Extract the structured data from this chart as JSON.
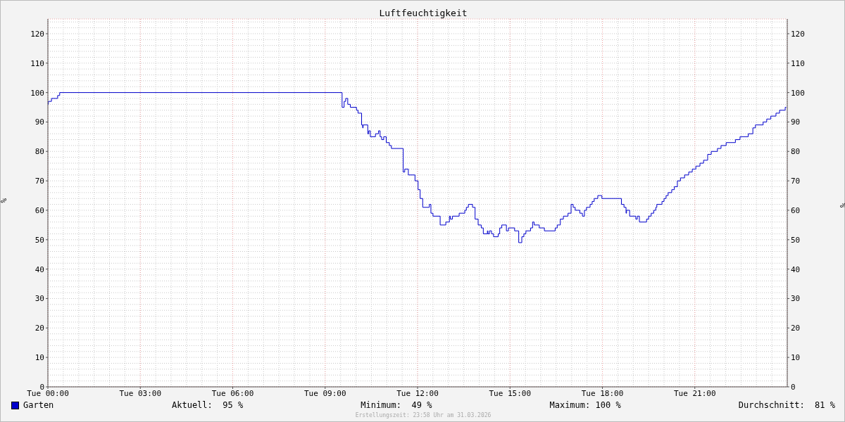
{
  "chart_data": {
    "type": "step",
    "title": "Luftfeuchtigkeit",
    "ylabel": "%",
    "y2label": "%",
    "x": [
      "2026-03-31T00:00",
      "2026-03-31T00:01",
      "2026-03-31T00:07",
      "2026-03-31T00:19",
      "2026-03-31T00:23",
      "2026-03-31T09:32",
      "2026-03-31T09:33",
      "2026-03-31T09:37",
      "2026-03-31T09:40",
      "2026-03-31T09:44",
      "2026-03-31T09:49",
      "2026-03-31T10:01",
      "2026-03-31T10:04",
      "2026-03-31T10:11",
      "2026-03-31T10:13",
      "2026-03-31T10:14",
      "2026-03-31T10:23",
      "2026-03-31T10:25",
      "2026-03-31T10:28",
      "2026-03-31T10:38",
      "2026-03-31T10:44",
      "2026-03-31T10:47",
      "2026-03-31T10:50",
      "2026-03-31T10:54",
      "2026-03-31T10:59",
      "2026-03-31T11:05",
      "2026-03-31T11:09",
      "2026-03-31T11:31",
      "2026-03-31T11:32",
      "2026-03-31T11:35",
      "2026-03-31T11:42",
      "2026-03-31T11:55",
      "2026-03-31T12:01",
      "2026-03-31T12:05",
      "2026-03-31T12:10",
      "2026-03-31T12:23",
      "2026-03-31T12:26",
      "2026-03-31T12:30",
      "2026-03-31T12:44",
      "2026-03-31T12:55",
      "2026-03-31T13:02",
      "2026-03-31T13:04",
      "2026-03-31T13:08",
      "2026-03-31T13:21",
      "2026-03-31T13:32",
      "2026-03-31T13:35",
      "2026-03-31T13:39",
      "2026-03-31T13:47",
      "2026-03-31T13:52",
      "2026-03-31T13:58",
      "2026-03-31T14:04",
      "2026-03-31T14:08",
      "2026-03-31T14:16",
      "2026-03-31T14:17",
      "2026-03-31T14:20",
      "2026-03-31T14:24",
      "2026-03-31T14:28",
      "2026-03-31T14:37",
      "2026-03-31T14:40",
      "2026-03-31T14:44",
      "2026-03-31T14:53",
      "2026-03-31T14:57",
      "2026-03-31T15:09",
      "2026-03-31T15:17",
      "2026-03-31T15:23",
      "2026-03-31T15:27",
      "2026-03-31T15:31",
      "2026-03-31T15:40",
      "2026-03-31T15:44",
      "2026-03-31T15:47",
      "2026-03-31T15:57",
      "2026-03-31T16:07",
      "2026-03-31T16:28",
      "2026-03-31T16:32",
      "2026-03-31T16:38",
      "2026-03-31T16:44",
      "2026-03-31T16:53",
      "2026-03-31T16:59",
      "2026-03-31T17:03",
      "2026-03-31T17:07",
      "2026-03-31T17:16",
      "2026-03-31T17:21",
      "2026-03-31T17:25",
      "2026-03-31T17:29",
      "2026-03-31T17:36",
      "2026-03-31T17:40",
      "2026-03-31T17:44",
      "2026-03-31T17:51",
      "2026-03-31T17:59",
      "2026-03-31T18:37",
      "2026-03-31T18:42",
      "2026-03-31T18:46",
      "2026-03-31T18:47",
      "2026-03-31T18:53",
      "2026-03-31T19:05",
      "2026-03-31T19:08",
      "2026-03-31T19:12",
      "2026-03-31T19:26",
      "2026-03-31T19:30",
      "2026-03-31T19:35",
      "2026-03-31T19:40",
      "2026-03-31T19:44",
      "2026-03-31T19:46",
      "2026-03-31T19:56",
      "2026-03-31T20:00",
      "2026-03-31T20:04",
      "2026-03-31T20:08",
      "2026-03-31T20:15",
      "2026-03-31T20:20",
      "2026-03-31T20:26",
      "2026-03-31T20:32",
      "2026-03-31T20:40",
      "2026-03-31T20:48",
      "2026-03-31T20:55",
      "2026-03-31T21:02",
      "2026-03-31T21:10",
      "2026-03-31T21:17",
      "2026-03-31T21:25",
      "2026-03-31T21:32",
      "2026-03-31T21:44",
      "2026-03-31T21:51",
      "2026-03-31T22:01",
      "2026-03-31T22:19",
      "2026-03-31T22:28",
      "2026-03-31T22:44",
      "2026-03-31T22:53",
      "2026-03-31T22:58",
      "2026-03-31T23:13",
      "2026-03-31T23:20",
      "2026-03-31T23:28",
      "2026-03-31T23:38",
      "2026-03-31T23:45",
      "2026-03-31T23:56",
      "2026-03-31T23:58"
    ],
    "series": [
      {
        "name": "Garten",
        "color": "#0000cc",
        "values": [
          96,
          97,
          98,
          99,
          100,
          100,
          95,
          97,
          98,
          96,
          95,
          94,
          93,
          89,
          88,
          89,
          86,
          87,
          85,
          86,
          87,
          85,
          84,
          85,
          83,
          82,
          81,
          81,
          73,
          74,
          72,
          70,
          67,
          64,
          61,
          62,
          59,
          58,
          55,
          56,
          58,
          57,
          58,
          59,
          60,
          61,
          62,
          61,
          57,
          55,
          54,
          52,
          53,
          52,
          53,
          52,
          51,
          52,
          54,
          55,
          53,
          54,
          53,
          49,
          51,
          52,
          53,
          54,
          56,
          55,
          54,
          53,
          54,
          55,
          57,
          58,
          59,
          62,
          61,
          60,
          59,
          58,
          60,
          61,
          62,
          63,
          64,
          65,
          64,
          62,
          61,
          59,
          60,
          58,
          57,
          58,
          56,
          57,
          58,
          59,
          60,
          61,
          62,
          63,
          64,
          65,
          66,
          67,
          68,
          70,
          71,
          72,
          73,
          74,
          75,
          76,
          77,
          79,
          80,
          81,
          82,
          83,
          84,
          85,
          86,
          88,
          89,
          90,
          91,
          92,
          93,
          94,
          95,
          95
        ]
      }
    ],
    "xlim": [
      "2026-03-31T00:00",
      "2026-04-01T00:00"
    ],
    "xticks": [
      {
        "value": "2026-03-31T00:00",
        "label": "Tue 00:00"
      },
      {
        "value": "2026-03-31T03:00",
        "label": "Tue 03:00"
      },
      {
        "value": "2026-03-31T06:00",
        "label": "Tue 06:00"
      },
      {
        "value": "2026-03-31T09:00",
        "label": "Tue 09:00"
      },
      {
        "value": "2026-03-31T12:00",
        "label": "Tue 12:00"
      },
      {
        "value": "2026-03-31T15:00",
        "label": "Tue 15:00"
      },
      {
        "value": "2026-03-31T18:00",
        "label": "Tue 18:00"
      },
      {
        "value": "2026-03-31T21:00",
        "label": "Tue 21:00"
      }
    ],
    "ylim": [
      0,
      125
    ],
    "yticks": [
      0,
      10,
      20,
      30,
      40,
      50,
      60,
      70,
      80,
      90,
      100,
      110,
      120
    ],
    "y2lim": [
      0,
      125
    ],
    "y2ticks": [
      0,
      10,
      20,
      30,
      40,
      50,
      60,
      70,
      80,
      90,
      100,
      110,
      120
    ],
    "grid": true,
    "legend": "bottom",
    "annotations": [
      "Aktuell:  95 %",
      "Minimum:  49 %",
      "Maximum: 100 %",
      "Durchschnitt:  81 %",
      "Erstellungszeit: 23:58 Uhr am 31.03.2026"
    ]
  }
}
